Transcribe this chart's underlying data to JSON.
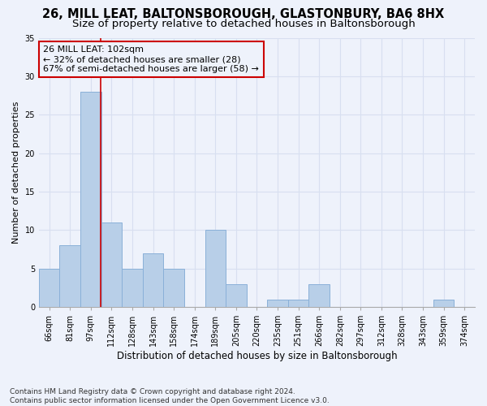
{
  "title": "26, MILL LEAT, BALTONSBOROUGH, GLASTONBURY, BA6 8HX",
  "subtitle": "Size of property relative to detached houses in Baltonsborough",
  "xlabel": "Distribution of detached houses by size in Baltonsborough",
  "ylabel": "Number of detached properties",
  "categories": [
    "66sqm",
    "81sqm",
    "97sqm",
    "112sqm",
    "128sqm",
    "143sqm",
    "158sqm",
    "174sqm",
    "189sqm",
    "205sqm",
    "220sqm",
    "235sqm",
    "251sqm",
    "266sqm",
    "282sqm",
    "297sqm",
    "312sqm",
    "328sqm",
    "343sqm",
    "359sqm",
    "374sqm"
  ],
  "values": [
    5,
    8,
    28,
    11,
    5,
    7,
    5,
    0,
    10,
    3,
    0,
    1,
    1,
    3,
    0,
    0,
    0,
    0,
    0,
    1,
    0
  ],
  "bar_color": "#b8cfe8",
  "bar_edgecolor": "#8ab0d8",
  "vline_x": 2.48,
  "vline_color": "#cc0000",
  "annotation_text": "26 MILL LEAT: 102sqm\n← 32% of detached houses are smaller (28)\n67% of semi-detached houses are larger (58) →",
  "annotation_box_color": "#cc0000",
  "ylim": [
    0,
    35
  ],
  "yticks": [
    0,
    5,
    10,
    15,
    20,
    25,
    30,
    35
  ],
  "background_color": "#eef2fb",
  "grid_color": "#d8dff0",
  "footer": "Contains HM Land Registry data © Crown copyright and database right 2024.\nContains public sector information licensed under the Open Government Licence v3.0.",
  "title_fontsize": 10.5,
  "subtitle_fontsize": 9.5,
  "xlabel_fontsize": 8.5,
  "ylabel_fontsize": 8,
  "tick_fontsize": 7,
  "annotation_fontsize": 8,
  "footer_fontsize": 6.5
}
